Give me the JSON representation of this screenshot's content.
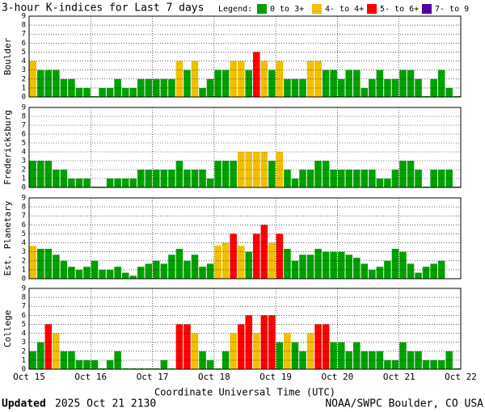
{
  "chart_data": {
    "type": "bar",
    "title": "3-hour K-indices for Last 7 days",
    "legend_title": "Legend:",
    "legend": [
      {
        "name": "0 to 3+",
        "color": "#00a000"
      },
      {
        "name": "4- to 4+",
        "color": "#f0c000"
      },
      {
        "name": "5- to 6+",
        "color": "#ff0000"
      },
      {
        "name": "7- to 9",
        "color": "#5000a0"
      }
    ],
    "xlabel": "Coordinate Universal Time (UTC)",
    "xticks": [
      "Oct 15",
      "Oct 16",
      "Oct 17",
      "Oct 18",
      "Oct 19",
      "Oct 20",
      "Oct 21",
      "Oct 22"
    ],
    "ylim": [
      0,
      9
    ],
    "yticks": [
      0,
      1,
      2,
      3,
      4,
      5,
      6,
      7,
      8,
      9
    ],
    "grid": true,
    "panels": [
      {
        "name": "Boulder",
        "values": [
          4,
          3,
          3,
          3,
          2,
          2,
          1,
          1,
          0,
          1,
          1,
          2,
          1,
          1,
          2,
          2,
          2,
          2,
          2,
          4,
          3,
          4,
          1,
          2,
          3,
          3,
          4,
          4,
          3,
          5,
          4,
          3,
          4,
          2,
          2,
          2,
          4,
          4,
          3,
          3,
          2,
          3,
          3,
          1,
          2,
          3,
          2,
          2,
          3,
          3,
          2,
          0,
          2,
          3,
          1,
          0
        ]
      },
      {
        "name": "Fredericksburg",
        "values": [
          3,
          3,
          3,
          2,
          2,
          1,
          1,
          1,
          0,
          0,
          1,
          1,
          1,
          1,
          2,
          2,
          2,
          2,
          2,
          3,
          2,
          2,
          2,
          1,
          3,
          3,
          3,
          4,
          4,
          4,
          4,
          3,
          4,
          2,
          1,
          2,
          2,
          3,
          3,
          2,
          2,
          2,
          2,
          2,
          2,
          1,
          1,
          2,
          3,
          3,
          2,
          0,
          2,
          2,
          2,
          0
        ]
      },
      {
        "name": "Est. Planetary",
        "values": [
          3.67,
          3.33,
          3.33,
          2.67,
          2,
          1.33,
          1,
          1.33,
          2,
          1,
          1,
          1.33,
          0.67,
          0.33,
          1.33,
          1.67,
          2,
          1.67,
          2.67,
          3.33,
          2,
          2.67,
          1.33,
          1.67,
          3.67,
          4,
          5,
          3.67,
          3,
          5,
          6,
          4,
          5,
          3.33,
          2,
          2.67,
          2.67,
          3.33,
          3,
          3,
          3,
          2.67,
          2.33,
          1.67,
          1,
          1.33,
          2,
          3.33,
          3,
          1.67,
          0.67,
          1.33,
          1.67,
          2,
          null,
          null
        ]
      },
      {
        "name": "College",
        "values": [
          2,
          3,
          5,
          4,
          2,
          2,
          1,
          1,
          1,
          0,
          1,
          2,
          0,
          0,
          0,
          0,
          0,
          1,
          0,
          5,
          5,
          4,
          2,
          1,
          0,
          2,
          4,
          5,
          6,
          4,
          6,
          6,
          3,
          4,
          3,
          2,
          4,
          5,
          5,
          3,
          3,
          2,
          3,
          2,
          2,
          2,
          1,
          1,
          3,
          2,
          2,
          1,
          1,
          1,
          2,
          0
        ]
      }
    ]
  },
  "footer": {
    "updated_label": "Updated",
    "updated": "2025 Oct 21 2130",
    "credit": "NOAA/SWPC Boulder, CO USA"
  }
}
